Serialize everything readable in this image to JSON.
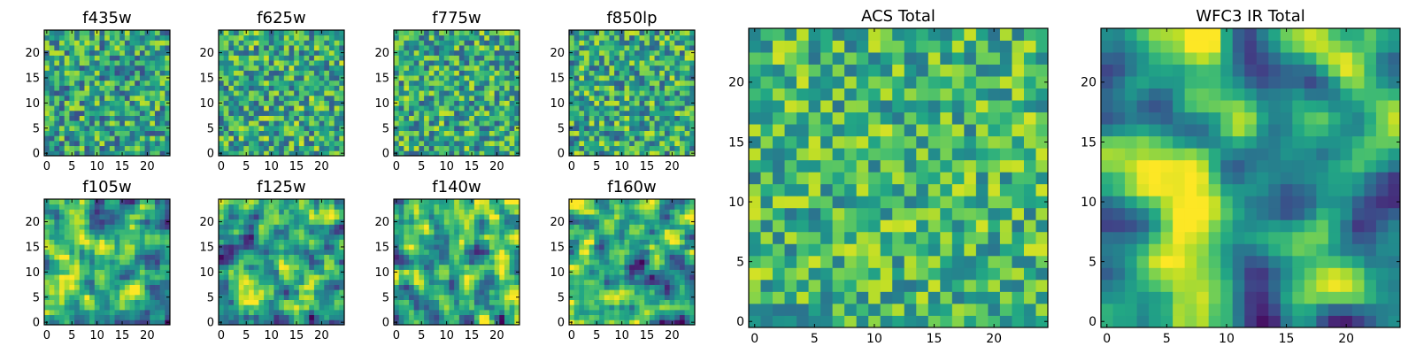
{
  "figure": {
    "colormap": "viridis",
    "colormap_stops": [
      "#440154",
      "#3b528b",
      "#21908d",
      "#5dc963",
      "#fde725"
    ],
    "background": "#ffffff"
  },
  "chart_data": [
    {
      "type": "heatmap",
      "title": "f435w",
      "grid_size": 25,
      "seed": 11,
      "smooth": 0,
      "bias": 0.58,
      "spread": 0.19,
      "xticks": [
        0,
        5,
        10,
        15,
        20
      ],
      "yticks": [
        0,
        5,
        10,
        15,
        20
      ],
      "xlim": [
        0,
        25
      ],
      "ylim": [
        0,
        25
      ]
    },
    {
      "type": "heatmap",
      "title": "f625w",
      "grid_size": 25,
      "seed": 23,
      "smooth": 0,
      "bias": 0.6,
      "spread": 0.19,
      "xticks": [
        0,
        5,
        10,
        15,
        20
      ],
      "yticks": [
        0,
        5,
        10,
        15,
        20
      ],
      "xlim": [
        0,
        25
      ],
      "ylim": [
        0,
        25
      ]
    },
    {
      "type": "heatmap",
      "title": "f775w",
      "grid_size": 25,
      "seed": 37,
      "smooth": 0,
      "bias": 0.6,
      "spread": 0.19,
      "xticks": [
        0,
        5,
        10,
        15,
        20
      ],
      "yticks": [
        0,
        5,
        10,
        15,
        20
      ],
      "xlim": [
        0,
        25
      ],
      "ylim": [
        0,
        25
      ]
    },
    {
      "type": "heatmap",
      "title": "f850lp",
      "grid_size": 25,
      "seed": 41,
      "smooth": 0,
      "bias": 0.6,
      "spread": 0.19,
      "xticks": [
        0,
        5,
        10,
        15,
        20
      ],
      "yticks": [
        0,
        5,
        10,
        15,
        20
      ],
      "xlim": [
        0,
        25
      ],
      "ylim": [
        0,
        25
      ]
    },
    {
      "type": "heatmap",
      "title": "f105w",
      "grid_size": 25,
      "seed": 53,
      "smooth": 1,
      "bias": 0.6,
      "spread": 0.2,
      "xticks": [
        0,
        5,
        10,
        15,
        20
      ],
      "yticks": [
        0,
        5,
        10,
        15,
        20
      ],
      "xlim": [
        0,
        25
      ],
      "ylim": [
        0,
        25
      ]
    },
    {
      "type": "heatmap",
      "title": "f125w",
      "grid_size": 25,
      "seed": 67,
      "smooth": 1,
      "bias": 0.58,
      "spread": 0.2,
      "xticks": [
        0,
        5,
        10,
        15,
        20
      ],
      "yticks": [
        0,
        5,
        10,
        15,
        20
      ],
      "xlim": [
        0,
        25
      ],
      "ylim": [
        0,
        25
      ]
    },
    {
      "type": "heatmap",
      "title": "f140w",
      "grid_size": 25,
      "seed": 79,
      "smooth": 1,
      "bias": 0.62,
      "spread": 0.2,
      "xticks": [
        0,
        5,
        10,
        15,
        20
      ],
      "yticks": [
        0,
        5,
        10,
        15,
        20
      ],
      "xlim": [
        0,
        25
      ],
      "ylim": [
        0,
        25
      ]
    },
    {
      "type": "heatmap",
      "title": "f160w",
      "grid_size": 25,
      "seed": 83,
      "smooth": 1,
      "bias": 0.6,
      "spread": 0.2,
      "xticks": [
        0,
        5,
        10,
        15,
        20
      ],
      "yticks": [
        0,
        5,
        10,
        15,
        20
      ],
      "xlim": [
        0,
        25
      ],
      "ylim": [
        0,
        25
      ]
    },
    {
      "type": "heatmap",
      "title": "ACS Total",
      "grid_size": 25,
      "seed": 97,
      "smooth": 0,
      "bias": 0.66,
      "spread": 0.17,
      "xticks": [
        0,
        5,
        10,
        15,
        20
      ],
      "yticks": [
        0,
        5,
        10,
        15,
        20
      ],
      "xlim": [
        0,
        25
      ],
      "ylim": [
        0,
        25
      ]
    },
    {
      "type": "heatmap",
      "title": "WFC3 IR Total",
      "grid_size": 25,
      "seed": 101,
      "smooth": 2,
      "bias": 0.58,
      "spread": 0.22,
      "xticks": [
        0,
        5,
        10,
        15,
        20
      ],
      "yticks": [
        0,
        5,
        10,
        15,
        20
      ],
      "xlim": [
        0,
        25
      ],
      "ylim": [
        0,
        25
      ]
    }
  ]
}
